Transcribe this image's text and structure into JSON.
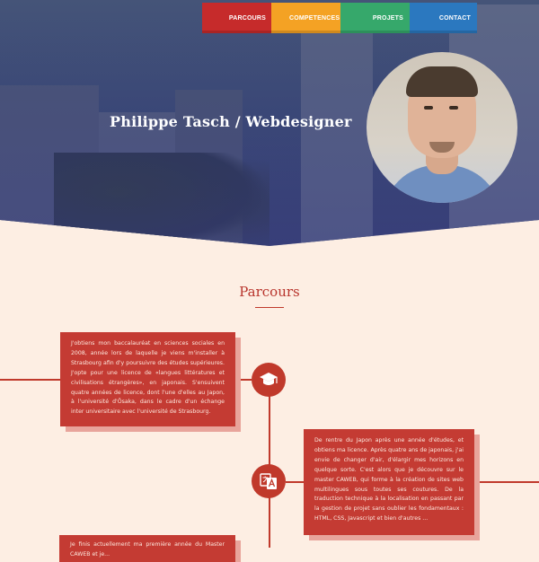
{
  "nav": {
    "items": [
      {
        "label": "PARCOURS",
        "color": "#c62b2b"
      },
      {
        "label": "COMPETENCES",
        "color": "#f4a224"
      },
      {
        "label": "PROJETS",
        "color": "#36a86b"
      },
      {
        "label": "CONTACT",
        "color": "#2b78bf"
      }
    ]
  },
  "hero": {
    "title": "Philippe Tasch / Webdesigner"
  },
  "section": {
    "title": "Parcours"
  },
  "timeline": {
    "items": [
      {
        "icon": "graduation-cap-icon",
        "text": "J'obtiens mon baccalauréat en sciences sociales en 2008, année lors de laquelle je viens m'installer à Strasbourg afin d'y poursuivre des études supérieures. J'opte pour une licence de «langues littératures et civilisations étrangères», en japonais. S'ensuivent quatre années de licence, dont l'une d'elles au Japon, à l'université d'Ōsaka, dans le cadre d'un échange inter universitaire avec l'université de Strasbourg."
      },
      {
        "icon": "translate-icon",
        "text": "De rentre du Japon après une année d'études, et obtiens ma licence. Après quatre ans de japonais, j'ai envie de changer d'air, d'élargir mes horizons en quelque sorte. C'est alors que je découvre sur le master CAWEB, qui forme à la création de sites web multilingues sous toutes ses coutures. De la traduction technique à la localisation en passant par la gestion de projet sans oublier les fondamentaux : HTML, CSS, Javascript et bien d'autres ..."
      },
      {
        "icon": "",
        "text": "Je finis actuellement ma première année du Master CAWEB et je..."
      }
    ]
  },
  "colors": {
    "accent": "#c0392b",
    "background": "#fdeee3"
  }
}
